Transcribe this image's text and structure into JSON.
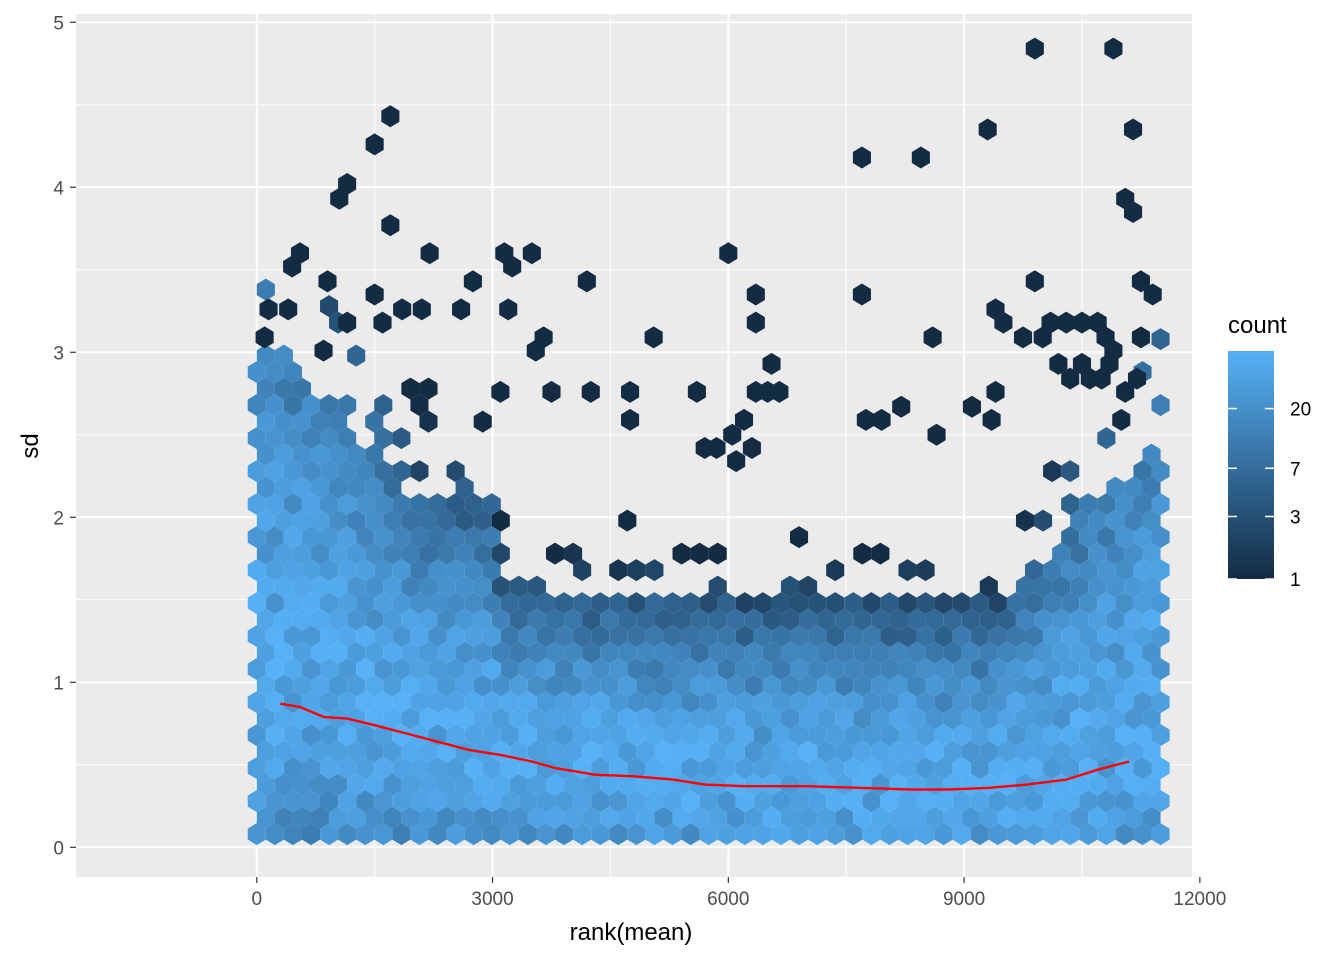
{
  "chart_data": {
    "type": "hexbin",
    "title": "",
    "xlabel": "rank(mean)",
    "ylabel": "sd",
    "xlim": [
      -2300,
      11900
    ],
    "ylim": [
      -0.18,
      5.05
    ],
    "x_ticks": [
      0,
      3000,
      6000,
      9000,
      12000
    ],
    "x_tick_labels": [
      "0",
      "3000",
      "6000",
      "9000",
      "12000"
    ],
    "y_ticks": [
      0,
      1,
      2,
      3,
      4,
      5
    ],
    "y_tick_labels": [
      "0",
      "1",
      "2",
      "3",
      "4",
      "5"
    ],
    "x_range_data": [
      0,
      11500
    ],
    "grid": true,
    "background": "#ebebeb",
    "legend": {
      "title": "count",
      "placement": "right",
      "scale": "log",
      "breaks": [
        1,
        3,
        7,
        20
      ],
      "break_labels": [
        "1",
        "3",
        "7",
        "20"
      ],
      "max": 55,
      "color_low": "#132B43",
      "color_high": "#56B1F7"
    },
    "trend_line": {
      "color": "#ff0000",
      "points": [
        [
          300,
          0.87
        ],
        [
          550,
          0.85
        ],
        [
          850,
          0.79
        ],
        [
          1150,
          0.78
        ],
        [
          1500,
          0.74
        ],
        [
          1900,
          0.69
        ],
        [
          2300,
          0.64
        ],
        [
          2700,
          0.59
        ],
        [
          3100,
          0.56
        ],
        [
          3500,
          0.52
        ],
        [
          3800,
          0.48
        ],
        [
          4300,
          0.44
        ],
        [
          4800,
          0.43
        ],
        [
          5300,
          0.41
        ],
        [
          5700,
          0.38
        ],
        [
          6200,
          0.37
        ],
        [
          7000,
          0.37
        ],
        [
          7700,
          0.36
        ],
        [
          8300,
          0.35
        ],
        [
          8800,
          0.35
        ],
        [
          9300,
          0.36
        ],
        [
          9800,
          0.38
        ],
        [
          10300,
          0.41
        ],
        [
          10700,
          0.47
        ],
        [
          11100,
          0.52
        ]
      ]
    },
    "outlier_cells": [
      [
        1700,
        4.43
      ],
      [
        1500,
        4.26
      ],
      [
        1150,
        4.02
      ],
      [
        1050,
        3.93
      ],
      [
        1700,
        3.77
      ],
      [
        450,
        3.52
      ],
      [
        550,
        3.6
      ],
      [
        900,
        3.43
      ],
      [
        2200,
        3.6
      ],
      [
        3150,
        3.6
      ],
      [
        3500,
        3.6
      ],
      [
        3250,
        3.52
      ],
      [
        6000,
        3.6
      ],
      [
        4200,
        3.43
      ],
      [
        2750,
        3.43
      ],
      [
        5050,
        3.09
      ],
      [
        6350,
        3.35
      ],
      [
        6350,
        3.18
      ],
      [
        7700,
        4.18
      ],
      [
        8450,
        4.18
      ],
      [
        9300,
        4.35
      ],
      [
        9900,
        4.84
      ],
      [
        10900,
        4.84
      ],
      [
        11150,
        4.35
      ],
      [
        11050,
        3.93
      ],
      [
        11150,
        3.85
      ],
      [
        7700,
        3.35
      ],
      [
        8600,
        3.09
      ],
      [
        9900,
        3.43
      ],
      [
        9750,
        3.09
      ],
      [
        150,
        3.26
      ],
      [
        100,
        3.09
      ],
      [
        400,
        3.26
      ],
      [
        1500,
        3.35
      ],
      [
        2100,
        3.26
      ],
      [
        2600,
        3.26
      ],
      [
        3650,
        3.09
      ],
      [
        3550,
        3.01
      ],
      [
        3200,
        3.26
      ],
      [
        1850,
        3.26
      ],
      [
        1600,
        3.18
      ],
      [
        1150,
        3.18
      ],
      [
        850,
        3.01
      ],
      [
        11250,
        3.43
      ],
      [
        11400,
        3.35
      ],
      [
        11250,
        3.09
      ],
      [
        11200,
        2.84
      ],
      [
        11050,
        2.76
      ],
      [
        11000,
        2.59
      ],
      [
        9400,
        3.26
      ],
      [
        9500,
        3.18
      ],
      [
        9400,
        2.76
      ],
      [
        9350,
        2.59
      ],
      [
        9100,
        2.67
      ],
      [
        5600,
        2.76
      ],
      [
        4750,
        2.76
      ],
      [
        4250,
        2.76
      ],
      [
        3750,
        2.76
      ],
      [
        3100,
        2.76
      ],
      [
        6200,
        2.59
      ],
      [
        6350,
        2.76
      ],
      [
        6500,
        2.76
      ],
      [
        6650,
        2.76
      ],
      [
        7750,
        2.59
      ],
      [
        7950,
        2.59
      ],
      [
        8200,
        2.67
      ],
      [
        8650,
        2.5
      ],
      [
        4750,
        2.59
      ],
      [
        6050,
        2.5
      ],
      [
        6300,
        2.42
      ],
      [
        5850,
        2.42
      ],
      [
        5700,
        2.42
      ],
      [
        6550,
        2.93
      ],
      [
        6100,
        2.34
      ],
      [
        10100,
        3.18
      ],
      [
        10300,
        3.18
      ],
      [
        10500,
        3.18
      ],
      [
        10700,
        3.18
      ],
      [
        10800,
        3.09
      ],
      [
        10900,
        3.01
      ],
      [
        10850,
        2.93
      ],
      [
        10750,
        2.84
      ],
      [
        10600,
        2.84
      ],
      [
        10500,
        2.93
      ],
      [
        10350,
        2.84
      ],
      [
        10200,
        2.93
      ],
      [
        10000,
        3.09
      ]
    ]
  }
}
